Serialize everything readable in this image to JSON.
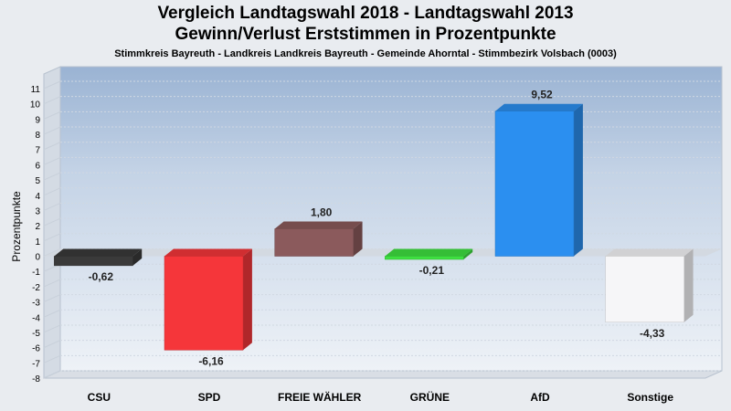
{
  "header": {
    "title_line1": "Vergleich Landtagswahl 2018 - Landtagswahl 2013",
    "title_line2": "Gewinn/Verlust Erststimmen in Prozentpunkte",
    "subtitle": "Stimmkreis Bayreuth - Landkreis Landkreis Bayreuth - Gemeinde Ahorntal - Stimmbezirk Volsbach (0003)"
  },
  "chart_data": {
    "type": "bar",
    "title": "Vergleich Landtagswahl 2018 - Landtagswahl 2013 Gewinn/Verlust Erststimmen in Prozentpunkte",
    "subtitle": "Stimmkreis Bayreuth - Landkreis Landkreis Bayreuth - Gemeinde Ahorntal - Stimmbezirk Volsbach (0003)",
    "ylabel": "Prozentpunkte",
    "xlabel": "",
    "ylim": [
      -8,
      11
    ],
    "yticks": [
      11,
      10,
      9,
      8,
      7,
      6,
      5,
      4,
      3,
      2,
      1,
      0,
      -1,
      -2,
      -3,
      -4,
      -5,
      -6,
      -7,
      -8
    ],
    "categories": [
      "CSU",
      "SPD",
      "FREIE WÄHLER",
      "GRÜNE",
      "AfD",
      "Sonstige"
    ],
    "values": [
      -0.62,
      -6.16,
      1.8,
      -0.21,
      9.52,
      -4.33
    ],
    "value_labels": [
      "-0,62",
      "-6,16",
      "1,80",
      "-0,21",
      "9,52",
      "-4,33"
    ],
    "colors": [
      "#3a3a3a",
      "#f5363a",
      "#8b5a5c",
      "#3ee040",
      "#2b8ff0",
      "#f6f6f8"
    ],
    "grid": true,
    "legend": "none"
  }
}
